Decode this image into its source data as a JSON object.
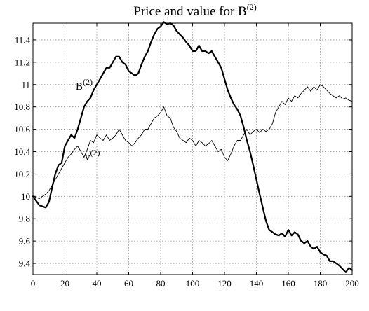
{
  "chart_data": {
    "type": "line",
    "title": "Price and value for B",
    "title_superscript": "(2)",
    "xlim": [
      0,
      200
    ],
    "ylim": [
      9.3,
      11.55
    ],
    "grid": true,
    "x_ticks": [
      0,
      20,
      40,
      60,
      80,
      100,
      120,
      140,
      160,
      180,
      200
    ],
    "y_ticks": [
      9.4,
      9.6,
      9.8,
      10,
      10.2,
      10.4,
      10.6,
      10.8,
      11,
      11.2,
      11.4
    ],
    "x_tick_labels": [
      "0",
      "20",
      "40",
      "60",
      "80",
      "100",
      "120",
      "140",
      "160",
      "180",
      "200"
    ],
    "y_tick_labels": [
      "9.4",
      "9.6",
      "9.8",
      "10",
      "10.2",
      "10.4",
      "10.6",
      "10.8",
      "11",
      "11.2",
      "11.4"
    ],
    "series": [
      {
        "name": "B",
        "name_superscript": "(2)",
        "color": "#000000",
        "style": "thick",
        "x": [
          0,
          4,
          8,
          10,
          12,
          14,
          16,
          18,
          20,
          22,
          24,
          26,
          28,
          30,
          32,
          34,
          36,
          38,
          40,
          42,
          44,
          46,
          48,
          50,
          52,
          54,
          56,
          58,
          60,
          62,
          64,
          66,
          68,
          70,
          72,
          74,
          76,
          78,
          80,
          82,
          84,
          86,
          88,
          90,
          92,
          94,
          96,
          98,
          100,
          102,
          104,
          106,
          108,
          110,
          112,
          114,
          116,
          118,
          120,
          122,
          124,
          126,
          128,
          130,
          132,
          134,
          136,
          138,
          140,
          142,
          144,
          146,
          148,
          150,
          152,
          154,
          156,
          158,
          160,
          162,
          164,
          166,
          168,
          170,
          172,
          174,
          176,
          178,
          180,
          182,
          184,
          186,
          188,
          190,
          192,
          194,
          196,
          198,
          200
        ],
        "y": [
          10.0,
          9.92,
          9.9,
          9.95,
          10.08,
          10.2,
          10.28,
          10.3,
          10.45,
          10.5,
          10.55,
          10.52,
          10.6,
          10.7,
          10.8,
          10.85,
          10.88,
          10.95,
          11.0,
          11.05,
          11.1,
          11.15,
          11.15,
          11.2,
          11.25,
          11.25,
          11.2,
          11.18,
          11.12,
          11.1,
          11.08,
          11.1,
          11.18,
          11.25,
          11.3,
          11.38,
          11.45,
          11.5,
          11.52,
          11.56,
          11.54,
          11.55,
          11.53,
          11.48,
          11.45,
          11.42,
          11.38,
          11.35,
          11.3,
          11.3,
          11.35,
          11.3,
          11.3,
          11.28,
          11.3,
          11.25,
          11.2,
          11.15,
          11.05,
          10.95,
          10.88,
          10.82,
          10.78,
          10.72,
          10.62,
          10.5,
          10.4,
          10.28,
          10.15,
          10.02,
          9.9,
          9.78,
          9.7,
          9.68,
          9.66,
          9.65,
          9.67,
          9.64,
          9.7,
          9.65,
          9.68,
          9.66,
          9.6,
          9.58,
          9.6,
          9.55,
          9.53,
          9.55,
          9.5,
          9.48,
          9.47,
          9.42,
          9.42,
          9.4,
          9.38,
          9.35,
          9.32,
          9.36,
          9.34
        ]
      },
      {
        "name": "v",
        "name_superscript": "(2)",
        "color": "#000000",
        "style": "thin",
        "x": [
          0,
          4,
          8,
          10,
          12,
          14,
          16,
          18,
          20,
          22,
          24,
          26,
          28,
          30,
          32,
          34,
          36,
          38,
          40,
          42,
          44,
          46,
          48,
          50,
          52,
          54,
          56,
          58,
          60,
          62,
          64,
          66,
          68,
          70,
          72,
          74,
          76,
          78,
          80,
          82,
          84,
          86,
          88,
          90,
          92,
          94,
          96,
          98,
          100,
          102,
          104,
          106,
          108,
          110,
          112,
          114,
          116,
          118,
          120,
          122,
          124,
          126,
          128,
          130,
          132,
          134,
          136,
          138,
          140,
          142,
          144,
          146,
          148,
          150,
          152,
          154,
          156,
          158,
          160,
          162,
          164,
          166,
          168,
          170,
          172,
          174,
          176,
          178,
          180,
          182,
          184,
          186,
          188,
          190,
          192,
          194,
          196,
          198,
          200
        ],
        "y": [
          10.0,
          9.98,
          10.02,
          10.05,
          10.1,
          10.15,
          10.2,
          10.25,
          10.3,
          10.35,
          10.38,
          10.42,
          10.45,
          10.4,
          10.35,
          10.42,
          10.5,
          10.48,
          10.55,
          10.52,
          10.5,
          10.55,
          10.5,
          10.52,
          10.55,
          10.6,
          10.55,
          10.5,
          10.48,
          10.45,
          10.48,
          10.52,
          10.55,
          10.6,
          10.6,
          10.65,
          10.7,
          10.72,
          10.75,
          10.8,
          10.72,
          10.7,
          10.62,
          10.58,
          10.52,
          10.5,
          10.48,
          10.52,
          10.5,
          10.45,
          10.5,
          10.48,
          10.45,
          10.47,
          10.5,
          10.45,
          10.4,
          10.42,
          10.35,
          10.32,
          10.38,
          10.45,
          10.5,
          10.5,
          10.55,
          10.6,
          10.55,
          10.58,
          10.6,
          10.57,
          10.6,
          10.58,
          10.6,
          10.65,
          10.75,
          10.8,
          10.85,
          10.82,
          10.88,
          10.85,
          10.9,
          10.88,
          10.92,
          10.95,
          10.98,
          10.94,
          10.98,
          10.95,
          11.0,
          10.98,
          10.95,
          10.92,
          10.9,
          10.88,
          10.9,
          10.87,
          10.88,
          10.86,
          10.85
        ]
      }
    ]
  }
}
